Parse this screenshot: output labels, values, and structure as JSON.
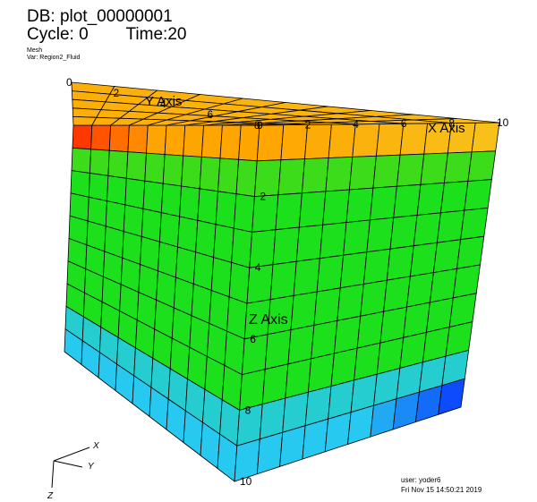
{
  "header": {
    "db_label": "DB: plot_00000001",
    "cycle_label": "Cycle: 0",
    "time_label": "Time:20",
    "plot_type": "Mesh",
    "variable": "Var: Region2_Fluid"
  },
  "axes": {
    "x_title": "X Axis",
    "y_title": "Y Axis",
    "z_title": "Z Axis",
    "x_ticks": [
      "0",
      "2",
      "4",
      "6",
      "8",
      "10"
    ],
    "y_ticks": [
      "0",
      "2",
      "4",
      "6",
      "8"
    ],
    "z_ticks": [
      "2",
      "4",
      "6",
      "8",
      "10"
    ]
  },
  "triad": {
    "x": "X",
    "y": "Y",
    "z": "Z"
  },
  "footer": {
    "user": "user: yoder6",
    "date": "Fri Nov 15 14:50:21 2019"
  },
  "colors": {
    "red": "#ff2a00",
    "orange": "#ffa500",
    "yellow_orange": "#f7c21b",
    "green": "#1be01b",
    "cyan": "#27c9f0",
    "blue": "#0a3cff",
    "mesh_line": "#000000"
  }
}
